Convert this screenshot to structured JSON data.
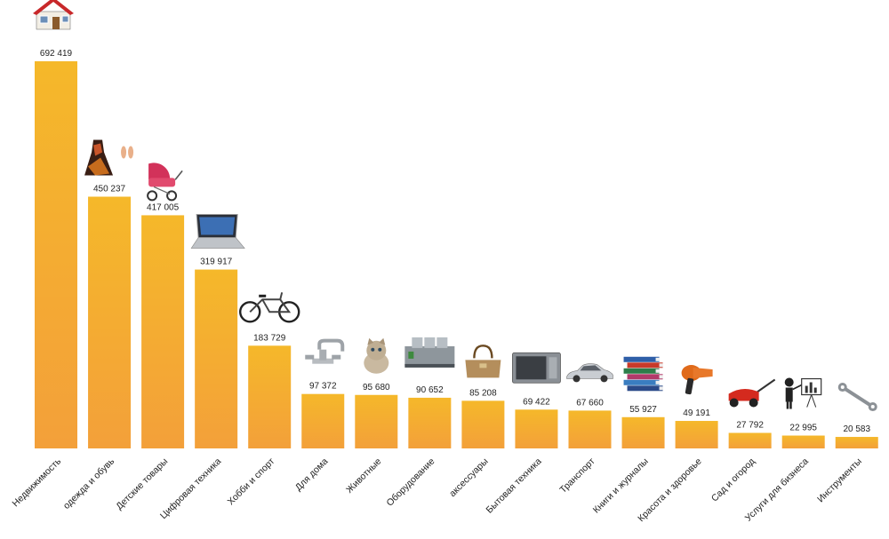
{
  "chart_data": {
    "type": "bar",
    "categories": [
      "Недвижимость",
      "одежда и обувь",
      "Детские товары",
      "Цифровая техника",
      "Хобби и спорт",
      "Для дома",
      "Животные",
      "Оборудование",
      "аксессуары",
      "Бытовая техника",
      "Транспорт",
      "Книги и журналы",
      "Красота и здоровье",
      "Сад и огород",
      "Услуги для бизнеса",
      "Инструменты"
    ],
    "values": [
      692419,
      450237,
      417005,
      319917,
      183729,
      97372,
      95680,
      90652,
      85208,
      69422,
      67660,
      55927,
      49191,
      27792,
      22995,
      20583
    ],
    "value_labels": [
      "692 419",
      "450 237",
      "417 005",
      "319 917",
      "183 729",
      "97 372",
      "95 680",
      "90 652",
      "85 208",
      "69 422",
      "67 660",
      "55 927",
      "49 191",
      "27 792",
      "22 995",
      "20 583"
    ],
    "icons": [
      "house-icon",
      "dress-and-sandals-icon",
      "baby-stroller-icon",
      "laptop-icon",
      "bicycle-icon",
      "faucet-icon",
      "kitten-icon",
      "printing-machine-icon",
      "handbag-icon",
      "microwave-icon",
      "car-icon",
      "books-stack-icon",
      "hair-dryer-icon",
      "lawn-mower-icon",
      "presenter-chart-icon",
      "wrench-icon"
    ],
    "title": "",
    "xlabel": "",
    "ylabel": "",
    "ylim": [
      0,
      692419
    ],
    "grid": false,
    "bar_color_top": "#F5B82A",
    "bar_color_bottom": "#F3A03A"
  }
}
